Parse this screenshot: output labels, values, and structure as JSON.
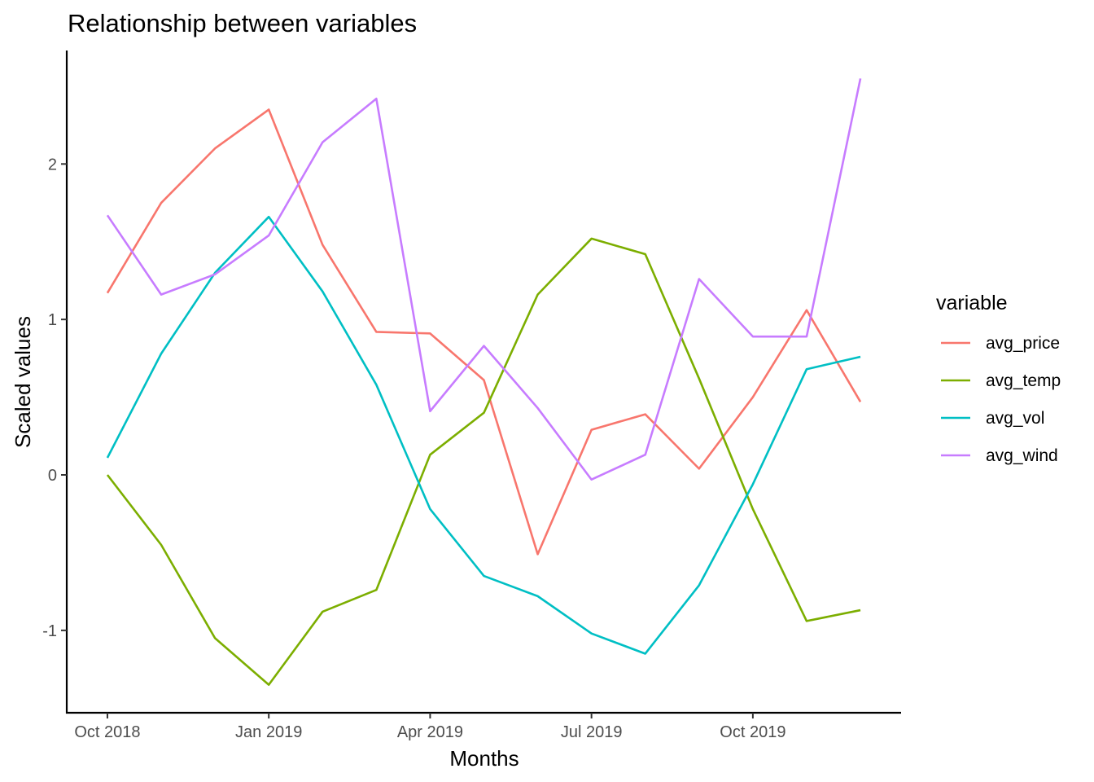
{
  "chart_data": {
    "type": "line",
    "title": "Relationship between variables",
    "xlabel": "Months",
    "ylabel": "Scaled values",
    "x": [
      "2018-10",
      "2018-11",
      "2018-12",
      "2019-01",
      "2019-02",
      "2019-03",
      "2019-04",
      "2019-05",
      "2019-06",
      "2019-07",
      "2019-08",
      "2019-09",
      "2019-10",
      "2019-11",
      "2019-12"
    ],
    "x_ticks": [
      {
        "value": "2018-10",
        "label": "Oct 2018"
      },
      {
        "value": "2019-01",
        "label": "Jan 2019"
      },
      {
        "value": "2019-04",
        "label": "Apr 2019"
      },
      {
        "value": "2019-07",
        "label": "Jul 2019"
      },
      {
        "value": "2019-10",
        "label": "Oct 2019"
      }
    ],
    "y_ticks": [
      -1,
      0,
      1,
      2
    ],
    "ylim": [
      -1.53,
      2.73
    ],
    "grid": false,
    "legend": {
      "title": "variable",
      "position": "right"
    },
    "series": [
      {
        "name": "avg_price",
        "color": "#F8766D",
        "values": [
          1.17,
          1.75,
          2.1,
          2.35,
          1.48,
          0.92,
          0.91,
          0.61,
          -0.51,
          0.29,
          0.39,
          0.04,
          0.5,
          1.06,
          0.47
        ]
      },
      {
        "name": "avg_temp",
        "color": "#7CAE00",
        "values": [
          0.0,
          -0.45,
          -1.05,
          -1.35,
          -0.88,
          -0.74,
          0.13,
          0.4,
          1.16,
          1.52,
          1.42,
          0.62,
          -0.22,
          -0.94,
          -0.87
        ]
      },
      {
        "name": "avg_vol",
        "color": "#00BFC4",
        "values": [
          0.11,
          0.78,
          1.3,
          1.66,
          1.18,
          0.58,
          -0.22,
          -0.65,
          -0.78,
          -1.02,
          -1.15,
          -0.71,
          -0.06,
          0.68,
          0.76
        ]
      },
      {
        "name": "avg_wind",
        "color": "#C77CFF",
        "values": [
          1.67,
          1.16,
          1.29,
          1.54,
          2.14,
          2.42,
          0.41,
          0.83,
          0.43,
          -0.03,
          0.13,
          1.26,
          0.89,
          0.89,
          2.55
        ]
      }
    ]
  }
}
